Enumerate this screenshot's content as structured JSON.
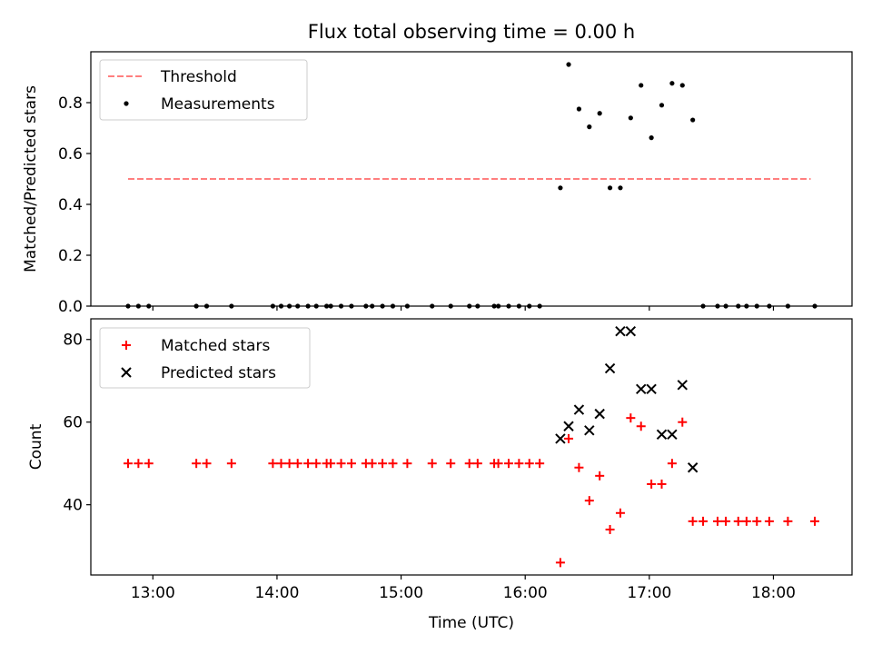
{
  "title": "Flux total observing time = 0.00 h",
  "chart_data": [
    {
      "type": "scatter",
      "xlabel": "",
      "ylabel": "Matched/Predicted stars",
      "xlim": [
        "12:30",
        "18:38"
      ],
      "ylim": [
        0,
        1.0
      ],
      "yticks": [
        0.0,
        0.2,
        0.4,
        0.6,
        0.8
      ],
      "ytick_labels": [
        "0.0",
        "0.2",
        "0.4",
        "0.6",
        "0.8"
      ],
      "legend_position": "top-left",
      "grid": false,
      "threshold": {
        "name": "Threshold",
        "y": 0.5,
        "x_range": [
          "12:48",
          "18:18"
        ],
        "color": "#ff7f7f"
      },
      "series": [
        {
          "name": "Measurements",
          "color": "#000000",
          "marker": "dot",
          "points": [
            [
              "12:48",
              0.0
            ],
            [
              "12:53",
              0.0
            ],
            [
              "12:58",
              0.0
            ],
            [
              "13:21",
              0.0
            ],
            [
              "13:26",
              0.0
            ],
            [
              "13:38",
              0.0
            ],
            [
              "13:58",
              0.0
            ],
            [
              "14:02",
              0.0
            ],
            [
              "14:06",
              0.0
            ],
            [
              "14:10",
              0.0
            ],
            [
              "14:15",
              0.0
            ],
            [
              "14:19",
              0.0
            ],
            [
              "14:24",
              0.0
            ],
            [
              "14:26",
              0.0
            ],
            [
              "14:31",
              0.0
            ],
            [
              "14:36",
              0.0
            ],
            [
              "14:43",
              0.0
            ],
            [
              "14:46",
              0.0
            ],
            [
              "14:51",
              0.0
            ],
            [
              "14:56",
              0.0
            ],
            [
              "15:03",
              0.0
            ],
            [
              "15:15",
              0.0
            ],
            [
              "15:24",
              0.0
            ],
            [
              "15:33",
              0.0
            ],
            [
              "15:37",
              0.0
            ],
            [
              "15:45",
              0.0
            ],
            [
              "15:47",
              0.0
            ],
            [
              "15:52",
              0.0
            ],
            [
              "15:57",
              0.0
            ],
            [
              "16:02",
              0.0
            ],
            [
              "16:07",
              0.0
            ],
            [
              "16:17",
              0.465
            ],
            [
              "16:21",
              0.95
            ],
            [
              "16:26",
              0.775
            ],
            [
              "16:31",
              0.705
            ],
            [
              "16:36",
              0.758
            ],
            [
              "16:41",
              0.465
            ],
            [
              "16:46",
              0.465
            ],
            [
              "16:51",
              0.74
            ],
            [
              "16:56",
              0.868
            ],
            [
              "17:01",
              0.662
            ],
            [
              "17:06",
              0.79
            ],
            [
              "17:11",
              0.876
            ],
            [
              "17:16",
              0.868
            ],
            [
              "17:21",
              0.732
            ],
            [
              "17:26",
              0.0
            ],
            [
              "17:33",
              0.0
            ],
            [
              "17:37",
              0.0
            ],
            [
              "17:43",
              0.0
            ],
            [
              "17:47",
              0.0
            ],
            [
              "17:52",
              0.0
            ],
            [
              "17:58",
              0.0
            ],
            [
              "18:07",
              0.0
            ],
            [
              "18:20",
              0.0
            ]
          ]
        }
      ]
    },
    {
      "type": "scatter",
      "xlabel": "Time (UTC)",
      "ylabel": "Count",
      "xlim": [
        "12:30",
        "18:38"
      ],
      "ylim": [
        23,
        85
      ],
      "yticks": [
        40,
        60,
        80
      ],
      "ytick_labels": [
        "40",
        "60",
        "80"
      ],
      "xticks": [
        "13:00",
        "14:00",
        "15:00",
        "16:00",
        "17:00",
        "18:00"
      ],
      "xtick_labels": [
        "13:00",
        "14:00",
        "15:00",
        "16:00",
        "17:00",
        "18:00"
      ],
      "legend_position": "top-left",
      "grid": false,
      "series": [
        {
          "name": "Matched stars",
          "color": "#ff0000",
          "marker": "plus",
          "points": [
            [
              "12:48",
              50
            ],
            [
              "12:53",
              50
            ],
            [
              "12:58",
              50
            ],
            [
              "13:21",
              50
            ],
            [
              "13:26",
              50
            ],
            [
              "13:38",
              50
            ],
            [
              "13:58",
              50
            ],
            [
              "14:02",
              50
            ],
            [
              "14:06",
              50
            ],
            [
              "14:10",
              50
            ],
            [
              "14:15",
              50
            ],
            [
              "14:19",
              50
            ],
            [
              "14:24",
              50
            ],
            [
              "14:26",
              50
            ],
            [
              "14:31",
              50
            ],
            [
              "14:36",
              50
            ],
            [
              "14:43",
              50
            ],
            [
              "14:46",
              50
            ],
            [
              "14:51",
              50
            ],
            [
              "14:56",
              50
            ],
            [
              "15:03",
              50
            ],
            [
              "15:15",
              50
            ],
            [
              "15:24",
              50
            ],
            [
              "15:33",
              50
            ],
            [
              "15:37",
              50
            ],
            [
              "15:45",
              50
            ],
            [
              "15:47",
              50
            ],
            [
              "15:52",
              50
            ],
            [
              "15:57",
              50
            ],
            [
              "16:02",
              50
            ],
            [
              "16:07",
              50
            ],
            [
              "16:17",
              26
            ],
            [
              "16:21",
              56
            ],
            [
              "16:26",
              49
            ],
            [
              "16:31",
              41
            ],
            [
              "16:36",
              47
            ],
            [
              "16:41",
              34
            ],
            [
              "16:46",
              38
            ],
            [
              "16:51",
              61
            ],
            [
              "16:56",
              59
            ],
            [
              "17:01",
              45
            ],
            [
              "17:06",
              45
            ],
            [
              "17:11",
              50
            ],
            [
              "17:16",
              60
            ],
            [
              "17:21",
              36
            ],
            [
              "17:26",
              36
            ],
            [
              "17:33",
              36
            ],
            [
              "17:37",
              36
            ],
            [
              "17:43",
              36
            ],
            [
              "17:47",
              36
            ],
            [
              "17:52",
              36
            ],
            [
              "17:58",
              36
            ],
            [
              "18:07",
              36
            ],
            [
              "18:20",
              36
            ]
          ]
        },
        {
          "name": "Predicted stars",
          "color": "#000000",
          "marker": "x",
          "points": [
            [
              "16:17",
              56
            ],
            [
              "16:21",
              59
            ],
            [
              "16:26",
              63
            ],
            [
              "16:31",
              58
            ],
            [
              "16:36",
              62
            ],
            [
              "16:41",
              73
            ],
            [
              "16:46",
              82
            ],
            [
              "16:51",
              82
            ],
            [
              "16:56",
              68
            ],
            [
              "17:01",
              68
            ],
            [
              "17:06",
              57
            ],
            [
              "17:11",
              57
            ],
            [
              "17:16",
              69
            ],
            [
              "17:21",
              49
            ]
          ]
        }
      ]
    }
  ]
}
